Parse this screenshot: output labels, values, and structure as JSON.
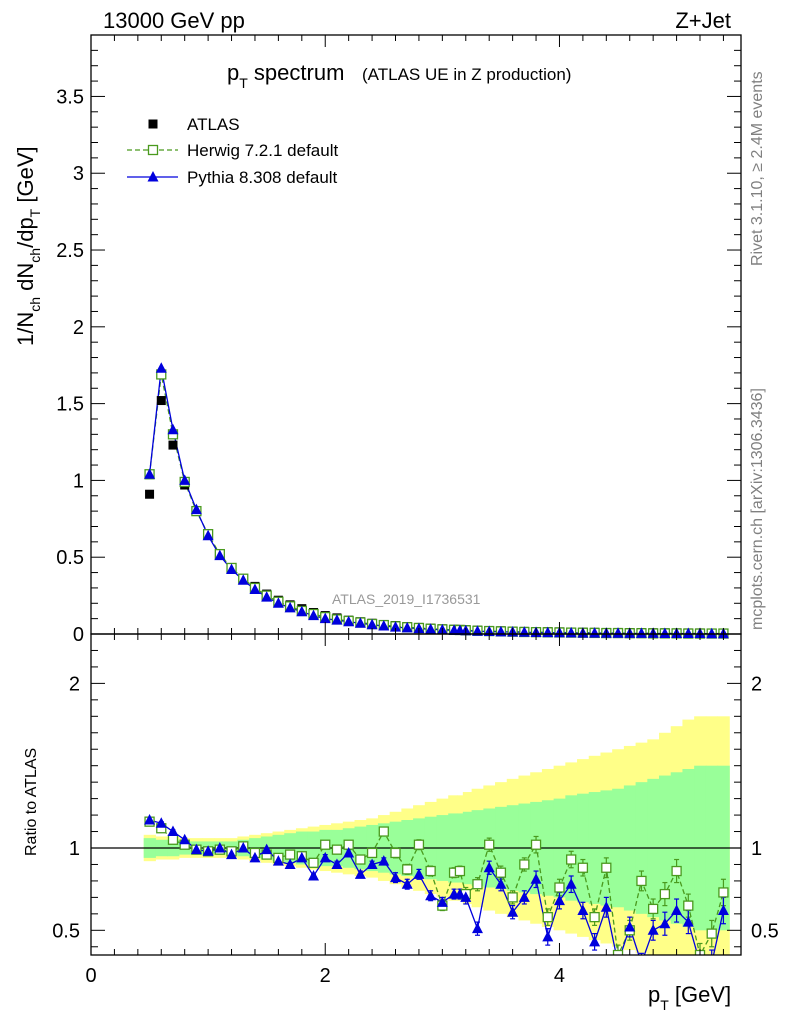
{
  "header": {
    "left": "13000 GeV pp",
    "right": "Z+Jet"
  },
  "title": {
    "main": "p",
    "main_sub": "T",
    "main_rest": " spectrum",
    "small": "(ATLAS UE in Z production)"
  },
  "ylabel": {
    "prefix": "1/N",
    "sub1": "ch",
    "mid1": " dN",
    "sub2": "ch",
    "mid2": "/dp",
    "sub3": "T",
    "suffix": " [GeV]"
  },
  "ratio_ylabel": "Ratio to ATLAS",
  "xlabel": {
    "prefix": "p",
    "sub": "T",
    "suffix": " [GeV]"
  },
  "side_text_top": "Rivet 3.1.10, ≥ 2.4M events",
  "side_text_bottom": "mcplots.cern.ch [arXiv:1306.3436]",
  "watermark": "ATLAS_2019_I1736531",
  "colors": {
    "atlas": "#000000",
    "herwig": "#4a9a1e",
    "pythia": "#0000dd",
    "band_inner": "#99ff99",
    "band_outer": "#ffff88"
  },
  "legend": [
    {
      "name": "ATLAS",
      "marker": "filled-square"
    },
    {
      "name": "Herwig 7.2.1 default",
      "marker": "open-square-dashed"
    },
    {
      "name": "Pythia 8.308 default",
      "marker": "filled-triangle"
    }
  ],
  "chart_data": {
    "type": "scatter",
    "x": [
      0.5,
      0.6,
      0.7,
      0.8,
      0.9,
      1.0,
      1.1,
      1.2,
      1.3,
      1.4,
      1.5,
      1.6,
      1.7,
      1.8,
      1.9,
      2.0,
      2.1,
      2.2,
      2.3,
      2.4,
      2.5,
      2.6,
      2.7,
      2.8,
      2.9,
      3.0,
      3.1,
      3.15,
      3.2,
      3.3,
      3.4,
      3.5,
      3.6,
      3.7,
      3.8,
      3.9,
      4.0,
      4.1,
      4.2,
      4.3,
      4.4,
      4.5,
      4.6,
      4.7,
      4.8,
      4.9,
      5.0,
      5.1,
      5.2,
      5.3,
      5.4
    ],
    "main": {
      "ylim": [
        0,
        3.9
      ],
      "yticks": [
        0,
        0.5,
        1,
        1.5,
        2,
        2.5,
        3,
        3.5
      ],
      "ytick_labels": [
        "0",
        "0.5",
        "1",
        "1.5",
        "2",
        "2.5",
        "3",
        "3.5"
      ],
      "series": [
        {
          "name": "ATLAS",
          "values": [
            0.91,
            1.52,
            1.23,
            0.97,
            0.8,
            0.65,
            0.52,
            0.43,
            0.36,
            0.31,
            0.26,
            0.22,
            0.19,
            0.165,
            0.14,
            0.12,
            0.105,
            0.09,
            0.08,
            0.07,
            0.062,
            0.055,
            0.048,
            0.043,
            0.038,
            0.034,
            0.031,
            0.03,
            0.028,
            0.025,
            0.023,
            0.021,
            0.019,
            0.017,
            0.016,
            0.015,
            0.014,
            0.013,
            0.012,
            0.011,
            0.01,
            0.01,
            0.009,
            0.009,
            0.008,
            0.008,
            0.007,
            0.007,
            0.007,
            0.006,
            0.006
          ]
        },
        {
          "name": "Herwig 7.2.1 default",
          "values": [
            1.04,
            1.69,
            1.3,
            0.99,
            0.8,
            0.65,
            0.52,
            0.43,
            0.36,
            0.3,
            0.25,
            0.21,
            0.18,
            0.15,
            0.13,
            0.11,
            0.095,
            0.085,
            0.075,
            0.065,
            0.058,
            0.05,
            0.044,
            0.039,
            0.034,
            0.03,
            0.027,
            0.026,
            0.024,
            0.021,
            0.019,
            0.017,
            0.015,
            0.013,
            0.012,
            0.011,
            0.01,
            0.009,
            0.008,
            0.007,
            0.006,
            0.006,
            0.005,
            0.005,
            0.004,
            0.004,
            0.004,
            0.003,
            0.003,
            0.003,
            0.003
          ]
        },
        {
          "name": "Pythia 8.308 default",
          "values": [
            1.04,
            1.73,
            1.33,
            1.0,
            0.81,
            0.64,
            0.51,
            0.42,
            0.35,
            0.29,
            0.24,
            0.2,
            0.17,
            0.145,
            0.12,
            0.1,
            0.09,
            0.08,
            0.07,
            0.06,
            0.052,
            0.045,
            0.04,
            0.035,
            0.031,
            0.027,
            0.024,
            0.023,
            0.021,
            0.018,
            0.016,
            0.014,
            0.013,
            0.011,
            0.01,
            0.009,
            0.008,
            0.007,
            0.006,
            0.006,
            0.005,
            0.005,
            0.004,
            0.004,
            0.004,
            0.003,
            0.003,
            0.003,
            0.003,
            0.002,
            0.002
          ]
        }
      ]
    },
    "ratio": {
      "ylim": [
        0.35,
        2.3
      ],
      "yticks": [
        0.5,
        1,
        2
      ],
      "ytick_labels": [
        "0.5",
        "1",
        "2"
      ],
      "band_inner_halfwidth": [
        0.06,
        0.05,
        0.05,
        0.04,
        0.04,
        0.04,
        0.04,
        0.04,
        0.05,
        0.06,
        0.07,
        0.08,
        0.09,
        0.1,
        0.1,
        0.11,
        0.11,
        0.12,
        0.13,
        0.14,
        0.15,
        0.16,
        0.17,
        0.18,
        0.19,
        0.2,
        0.21,
        0.21,
        0.22,
        0.23,
        0.24,
        0.25,
        0.26,
        0.27,
        0.28,
        0.29,
        0.3,
        0.32,
        0.33,
        0.34,
        0.35,
        0.36,
        0.38,
        0.4,
        0.42,
        0.44,
        0.46,
        0.48,
        0.5,
        0.5,
        0.5
      ],
      "band_outer_halfwidth": [
        0.08,
        0.07,
        0.07,
        0.06,
        0.06,
        0.06,
        0.06,
        0.06,
        0.07,
        0.08,
        0.09,
        0.1,
        0.11,
        0.12,
        0.13,
        0.14,
        0.15,
        0.16,
        0.17,
        0.18,
        0.2,
        0.22,
        0.24,
        0.26,
        0.28,
        0.3,
        0.32,
        0.32,
        0.34,
        0.36,
        0.38,
        0.4,
        0.42,
        0.44,
        0.46,
        0.48,
        0.5,
        0.52,
        0.54,
        0.56,
        0.58,
        0.6,
        0.62,
        0.64,
        0.66,
        0.7,
        0.74,
        0.78,
        0.8,
        0.8,
        0.8
      ],
      "series": [
        {
          "name": "Herwig 7.2.1 default",
          "values": [
            1.16,
            1.12,
            1.05,
            1.02,
            0.99,
            0.98,
            0.99,
            0.98,
            1.01,
            0.97,
            0.96,
            0.94,
            0.96,
            0.95,
            0.91,
            1.02,
            0.99,
            1.02,
            0.93,
            0.97,
            1.1,
            0.97,
            0.87,
            1.02,
            0.86,
            0.65,
            0.85,
            0.86,
            0.72,
            0.78,
            1.02,
            0.85,
            0.7,
            0.9,
            1.02,
            0.58,
            0.76,
            0.93,
            0.88,
            0.58,
            0.88,
            0.35,
            0.5,
            0.8,
            0.63,
            0.72,
            0.86,
            0.65,
            0.35,
            0.48,
            0.73
          ],
          "errors": [
            0.01,
            0.01,
            0.01,
            0.01,
            0.01,
            0.01,
            0.01,
            0.01,
            0.01,
            0.01,
            0.01,
            0.01,
            0.01,
            0.01,
            0.01,
            0.02,
            0.02,
            0.02,
            0.02,
            0.02,
            0.02,
            0.03,
            0.03,
            0.03,
            0.03,
            0.03,
            0.03,
            0.03,
            0.04,
            0.04,
            0.04,
            0.04,
            0.04,
            0.04,
            0.05,
            0.05,
            0.05,
            0.05,
            0.05,
            0.05,
            0.06,
            0.06,
            0.06,
            0.06,
            0.06,
            0.07,
            0.07,
            0.07,
            0.07,
            0.08,
            0.08
          ]
        },
        {
          "name": "Pythia 8.308 default",
          "values": [
            1.17,
            1.15,
            1.1,
            1.05,
            0.99,
            0.98,
            1.0,
            0.96,
            1.0,
            0.94,
            0.99,
            0.92,
            0.9,
            0.94,
            0.83,
            0.94,
            0.9,
            0.97,
            0.84,
            0.9,
            0.92,
            0.82,
            0.78,
            0.84,
            0.71,
            0.67,
            0.72,
            0.72,
            0.7,
            0.51,
            0.88,
            0.78,
            0.61,
            0.7,
            0.81,
            0.46,
            0.68,
            0.78,
            0.62,
            0.43,
            0.64,
            0.3,
            0.52,
            0.3,
            0.5,
            0.54,
            0.62,
            0.55,
            0.3,
            0.3,
            0.62
          ],
          "errors": [
            0.01,
            0.01,
            0.01,
            0.01,
            0.01,
            0.01,
            0.01,
            0.01,
            0.01,
            0.01,
            0.01,
            0.01,
            0.01,
            0.01,
            0.01,
            0.02,
            0.02,
            0.02,
            0.02,
            0.02,
            0.02,
            0.03,
            0.03,
            0.03,
            0.03,
            0.03,
            0.03,
            0.03,
            0.04,
            0.04,
            0.04,
            0.04,
            0.04,
            0.04,
            0.05,
            0.05,
            0.05,
            0.05,
            0.05,
            0.05,
            0.06,
            0.06,
            0.06,
            0.06,
            0.06,
            0.07,
            0.07,
            0.07,
            0.07,
            0.08,
            0.08
          ]
        }
      ]
    },
    "xlim": [
      0,
      5.55
    ],
    "xticks": [
      0,
      2,
      4
    ],
    "xtick_labels": [
      "0",
      "2",
      "4"
    ],
    "grid": false,
    "legend_position": "top-left"
  }
}
